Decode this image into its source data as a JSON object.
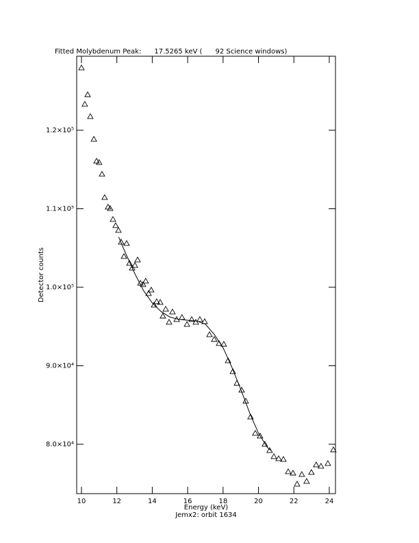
{
  "chart_data": {
    "type": "scatter",
    "title": "Fitted Molybdenum Peak:      17.5265 keV (      92 Science windows)",
    "xlabel": "Energy (keV)",
    "subtitle": "Jemx2: orbit 1634",
    "ylabel": "Detector counts",
    "xlim": [
      9.73,
      24.35
    ],
    "ylim": [
      73710,
      129430
    ],
    "xticks": [
      10,
      12,
      14,
      16,
      18,
      20,
      22,
      24
    ],
    "yticks": [
      {
        "value": 80000,
        "label": "8.0×10⁴"
      },
      {
        "value": 90000,
        "label": "9.0×10⁴"
      },
      {
        "value": 100000,
        "label": "1.0×10⁵"
      },
      {
        "value": 110000,
        "label": "1.1×10⁵"
      },
      {
        "value": 120000,
        "label": "1.2×10⁵"
      }
    ],
    "points": {
      "marker": "triangle",
      "color": "#000000",
      "x": [
        10.0,
        10.19,
        10.35,
        10.5,
        10.7,
        10.85,
        11.0,
        11.16,
        11.31,
        11.5,
        11.62,
        11.78,
        11.93,
        12.09,
        12.24,
        12.4,
        12.55,
        12.71,
        12.86,
        13.02,
        13.17,
        13.33,
        13.48,
        13.63,
        13.79,
        13.94,
        14.1,
        14.25,
        14.45,
        14.6,
        14.76,
        14.95,
        15.14,
        15.38,
        15.68,
        15.96,
        16.23,
        16.46,
        16.69,
        16.96,
        17.23,
        17.5,
        17.77,
        18.04,
        18.28,
        18.55,
        18.78,
        19.05,
        19.28,
        19.55,
        19.82,
        20.09,
        20.36,
        20.63,
        20.87,
        21.14,
        21.41,
        21.68,
        21.95,
        22.18,
        22.45,
        22.72,
        22.99,
        23.26,
        23.53,
        23.92,
        24.23
      ],
      "y": [
        127950,
        123320,
        124540,
        121750,
        118860,
        116070,
        115900,
        114410,
        111440,
        110220,
        110040,
        108650,
        107860,
        107250,
        105760,
        103930,
        105590,
        103060,
        102450,
        102790,
        103490,
        100520,
        100350,
        100790,
        99210,
        99650,
        97730,
        98170,
        98080,
        96330,
        97210,
        95550,
        96860,
        95900,
        96160,
        95280,
        95900,
        95550,
        95900,
        95630,
        93970,
        93360,
        92840,
        92750,
        90650,
        89260,
        87770,
        86900,
        85500,
        83490,
        81400,
        81050,
        80000,
        79210,
        78430,
        78170,
        78080,
        76510,
        76330,
        74930,
        76160,
        75280,
        76420,
        77380,
        77210,
        77560,
        79300
      ]
    },
    "fit": {
      "color": "#000000",
      "x": [
        12.1,
        12.5,
        13.0,
        13.5,
        14.0,
        14.5,
        15.0,
        15.5,
        16.0,
        16.5,
        17.0,
        17.5,
        18.0,
        18.5,
        19.0,
        19.5,
        20.0,
        20.5,
        20.7
      ],
      "y": [
        106400,
        104300,
        101800,
        99600,
        98000,
        96900,
        96200,
        95900,
        95800,
        95700,
        95300,
        94000,
        92300,
        89800,
        87000,
        84000,
        81400,
        79600,
        79200
      ]
    }
  }
}
